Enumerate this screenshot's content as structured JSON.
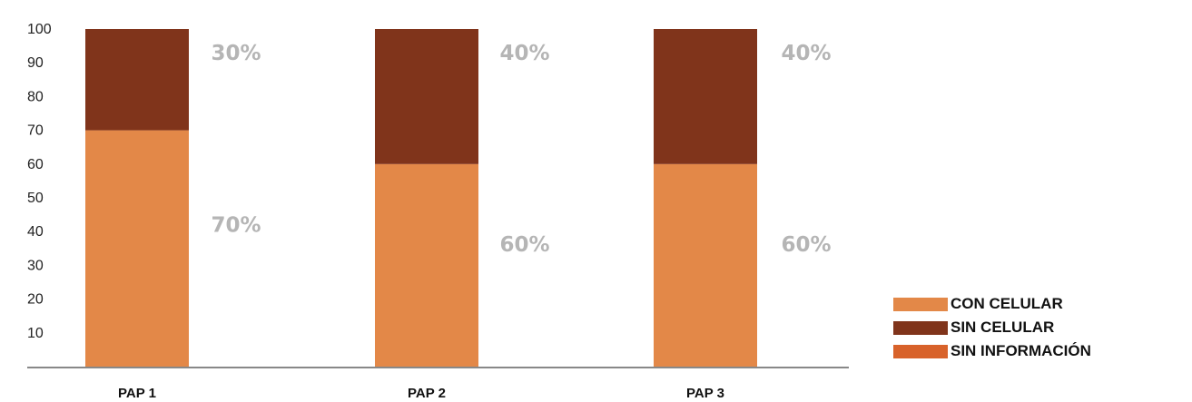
{
  "chart_data": {
    "type": "bar",
    "stacked": true,
    "categories": [
      "PAP 1",
      "PAP 2",
      "PAP 3"
    ],
    "series": [
      {
        "name": "CON CELULAR",
        "values": [
          70,
          60,
          60
        ],
        "labels": [
          "70%",
          "60%",
          "60%"
        ],
        "color": "#e38848"
      },
      {
        "name": "SIN CELULAR",
        "values": [
          30,
          40,
          40
        ],
        "labels": [
          "30%",
          "40%",
          "40%"
        ],
        "color": "#80341b"
      },
      {
        "name": "SIN INFORMACIÓN",
        "values": [
          0,
          0,
          0
        ],
        "labels": [
          "",
          "",
          ""
        ],
        "color": "#d8622a"
      }
    ],
    "yticks": [
      "10",
      "20",
      "30",
      "40",
      "50",
      "60",
      "70",
      "80",
      "90",
      "100"
    ],
    "ylim": [
      0,
      100
    ],
    "title": "",
    "xlabel": "",
    "ylabel": "",
    "grid": false,
    "legend_position": "bottom-right"
  }
}
